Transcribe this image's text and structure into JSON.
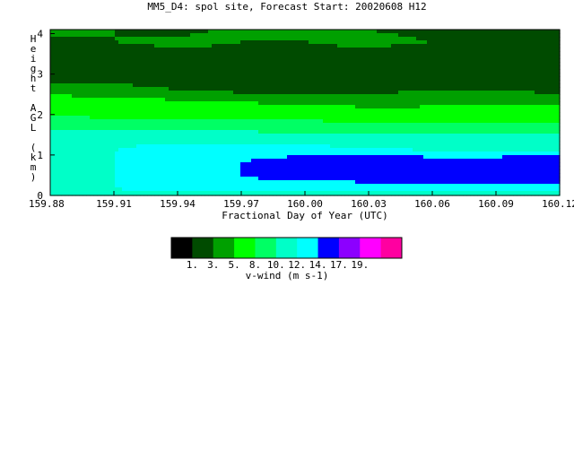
{
  "chart_data": {
    "type": "heatmap",
    "title": "MM5_D4: spol site,  Forecast Start: 20020608 H12",
    "xlabel": "Fractional Day of Year (UTC)",
    "ylabel": "Height AGL (km)",
    "xlim": [
      159.88,
      160.12
    ],
    "ylim": [
      0,
      4.1
    ],
    "x_ticks": [
      "159.88",
      "159.91",
      "159.94",
      "159.97",
      "160.00",
      "160.03",
      "160.06",
      "160.09",
      "160.12"
    ],
    "x_tick_values": [
      159.88,
      159.91,
      159.94,
      159.97,
      160.0,
      160.03,
      160.06,
      160.09,
      160.12
    ],
    "y_ticks": [
      "0",
      "1",
      "2",
      "3",
      "4"
    ],
    "y_tick_values": [
      0,
      1,
      2,
      3,
      4
    ],
    "x": [
      159.88,
      159.91,
      159.94,
      159.97,
      160.0,
      160.03,
      160.06,
      160.09,
      160.12
    ],
    "y": [
      0.0,
      0.2,
      0.5,
      0.8,
      1.1,
      1.4,
      1.7,
      2.0,
      2.3,
      2.6,
      2.9,
      3.2,
      3.5,
      3.8,
      4.1
    ],
    "z": [
      [
        11.0,
        11.5,
        11.5,
        11.5,
        11.0,
        11.0,
        10.5,
        10.5,
        10.5
      ],
      [
        11.0,
        12.0,
        13.0,
        13.0,
        12.5,
        12.5,
        12.5,
        12.5,
        12.5
      ],
      [
        11.0,
        12.0,
        13.5,
        14.0,
        15.5,
        16.0,
        16.0,
        16.0,
        17.0
      ],
      [
        11.0,
        12.0,
        13.5,
        14.0,
        15.5,
        16.0,
        16.0,
        16.0,
        17.0
      ],
      [
        11.0,
        12.0,
        13.0,
        13.0,
        13.0,
        12.5,
        12.0,
        12.0,
        12.0
      ],
      [
        11.5,
        11.5,
        11.5,
        11.5,
        11.0,
        10.5,
        10.5,
        10.5,
        10.5
      ],
      [
        9.0,
        9.0,
        9.0,
        9.0,
        9.0,
        9.0,
        9.0,
        9.0,
        9.0
      ],
      [
        8.0,
        7.5,
        7.5,
        7.5,
        7.0,
        6.5,
        6.0,
        6.0,
        6.5
      ],
      [
        6.5,
        6.0,
        5.5,
        5.0,
        4.5,
        4.0,
        4.5,
        4.5,
        4.5
      ],
      [
        4.0,
        3.5,
        3.0,
        2.5,
        2.5,
        2.5,
        3.0,
        3.0,
        2.5
      ],
      [
        2.5,
        2.5,
        2.5,
        1.5,
        1.5,
        2.0,
        2.0,
        2.0,
        2.0
      ],
      [
        1.5,
        1.5,
        2.5,
        1.5,
        2.0,
        2.0,
        2.0,
        2.0,
        2.0
      ],
      [
        2.0,
        2.0,
        2.5,
        2.5,
        2.5,
        2.5,
        2.0,
        2.0,
        2.0
      ],
      [
        3.0,
        3.0,
        3.5,
        3.0,
        3.0,
        3.5,
        3.0,
        2.5,
        2.5
      ],
      [
        3.0,
        3.0,
        2.5,
        3.5,
        3.5,
        3.0,
        2.5,
        2.5,
        2.5
      ]
    ],
    "colorbar": {
      "title": "v-wind (m s-1)",
      "tick_labels": [
        "1.",
        "3.",
        "5.",
        "8.",
        "10.",
        "12.",
        "14.",
        "17.",
        "19."
      ],
      "levels": [
        1,
        3,
        5,
        8,
        10,
        12,
        14,
        17,
        19
      ],
      "colors": [
        "#000000",
        "#004b00",
        "#00a000",
        "#00ff00",
        "#00ff64",
        "#00ffc8",
        "#00ffff",
        "#0000ff",
        "#8c00ff",
        "#ff00ff",
        "#ff00a0"
      ]
    }
  }
}
